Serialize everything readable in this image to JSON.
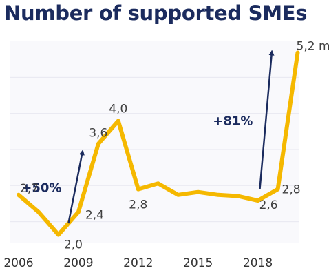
{
  "title": "Number of supported SMEs",
  "chart_data": {
    "type": "line",
    "title": "Number of supported SMEs",
    "xlabel": "",
    "ylabel": "",
    "xlim": [
      2006,
      2020.5
    ],
    "ylim": [
      1.85,
      5.4
    ],
    "grid": true,
    "x_ticks": [
      "2006",
      "2009",
      "2012",
      "2015",
      "2018"
    ],
    "x": [
      2006,
      2007,
      2008,
      2009,
      2010,
      2011,
      2012,
      2013,
      2014,
      2015,
      2016,
      2017,
      2018,
      2019,
      2020
    ],
    "series": [
      {
        "values": [
          2.7,
          2.4,
          2.0,
          2.4,
          3.6,
          4.0,
          2.8,
          2.9,
          2.7,
          2.75,
          2.7,
          2.68,
          2.6,
          2.8,
          5.2
        ]
      }
    ],
    "data_labels": [
      {
        "x": 2006,
        "y": 2.7,
        "text": "2,7"
      },
      {
        "x": 2008,
        "y": 2.0,
        "text": "2,0"
      },
      {
        "x": 2009,
        "y": 2.4,
        "text": "2,4"
      },
      {
        "x": 2010,
        "y": 3.6,
        "text": "3,6"
      },
      {
        "x": 2011,
        "y": 4.0,
        "text": "4,0"
      },
      {
        "x": 2012,
        "y": 2.8,
        "text": "2,8"
      },
      {
        "x": 2018,
        "y": 2.6,
        "text": "2,6"
      },
      {
        "x": 2019,
        "y": 2.8,
        "text": "2,8"
      },
      {
        "x": 2020,
        "y": 5.2,
        "text": "5,2 m"
      }
    ],
    "annotations": [
      {
        "text": "+50%",
        "from": [
          2008.5,
          2.2
        ],
        "to": [
          2009.2,
          3.45
        ]
      },
      {
        "text": "+81%",
        "from": [
          2018.1,
          2.8
        ],
        "to": [
          2018.7,
          5.2
        ]
      }
    ],
    "colors": {
      "line": "#f5b800",
      "arrow": "#1b2b5e",
      "grid": "#e8e8f0",
      "title": "#1b2b5e"
    }
  }
}
